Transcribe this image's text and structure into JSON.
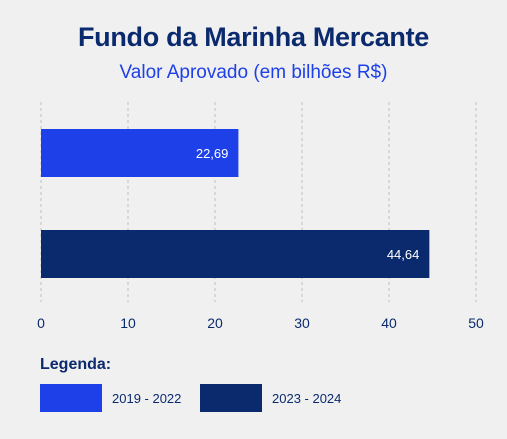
{
  "title": "Fundo da Marinha Mercante",
  "subtitle": "Valor Aprovado (em bilhões R$)",
  "legend": {
    "title": "Legenda:",
    "items": [
      {
        "label": "2019 - 2022",
        "color": "#1e40e8"
      },
      {
        "label": "2023 - 2024",
        "color": "#0b2a6e"
      }
    ]
  },
  "chart_data": {
    "type": "bar",
    "orientation": "horizontal",
    "title": "Fundo da Marinha Mercante",
    "subtitle": "Valor Aprovado (em bilhões R$)",
    "categories": [
      "2019 - 2022",
      "2023 - 2024"
    ],
    "values": [
      22.69,
      44.64
    ],
    "value_labels": [
      "22,69",
      "44,64"
    ],
    "colors": [
      "#1e40e8",
      "#0b2a6e"
    ],
    "xlim": [
      0,
      50
    ],
    "xticks": [
      0,
      10,
      20,
      30,
      40,
      50
    ],
    "grid": "vertical dashed",
    "legend_position": "bottom-left"
  }
}
